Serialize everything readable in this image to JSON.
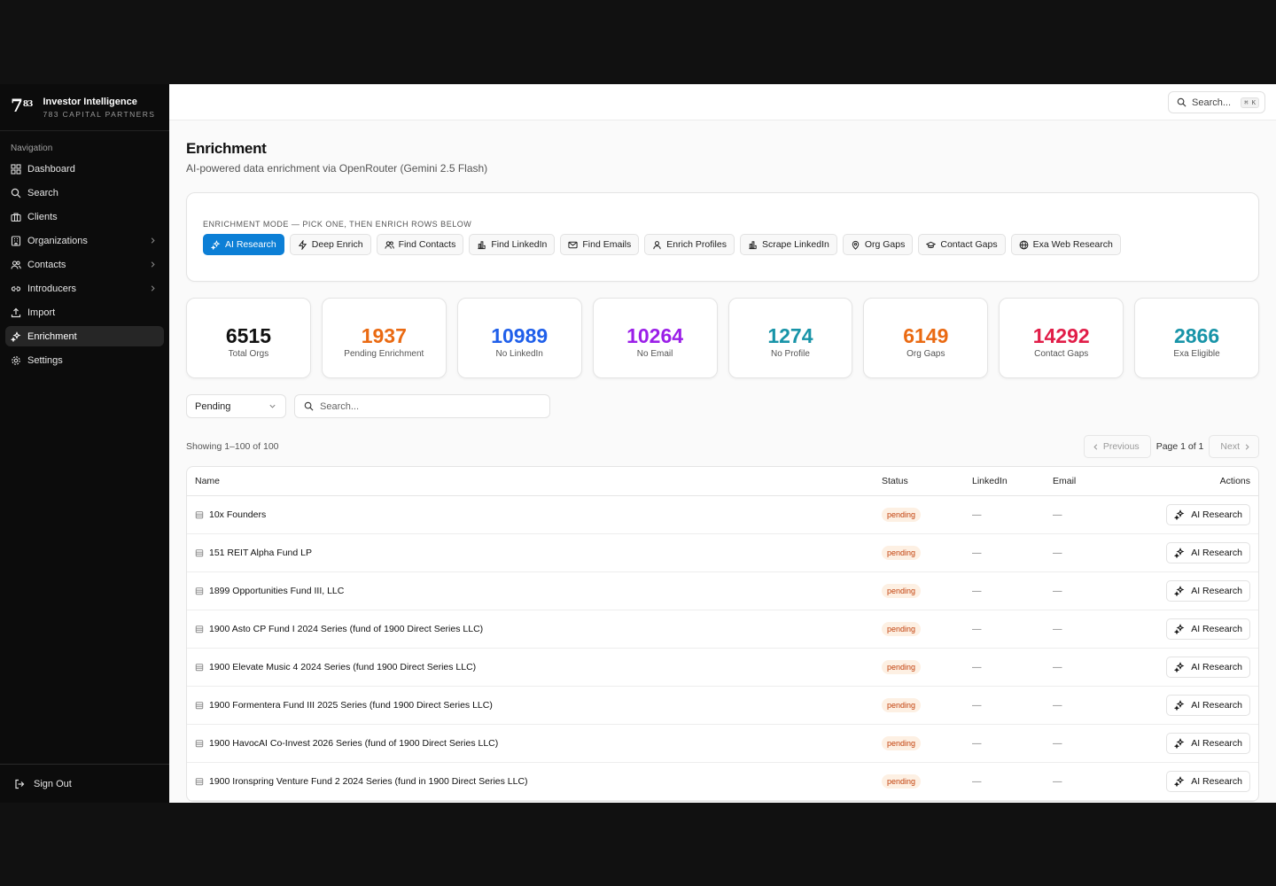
{
  "brand": {
    "logo": "7",
    "logo_sup": "83",
    "title": "Investor Intelligence",
    "subtitle": "783 CAPITAL PARTNERS"
  },
  "nav": {
    "label": "Navigation",
    "items": [
      {
        "label": "Dashboard",
        "icon": "dashboard-icon"
      },
      {
        "label": "Search",
        "icon": "search-icon"
      },
      {
        "label": "Clients",
        "icon": "briefcase-icon"
      },
      {
        "label": "Organizations",
        "icon": "building-icon",
        "expandable": true
      },
      {
        "label": "Contacts",
        "icon": "users-icon",
        "expandable": true
      },
      {
        "label": "Introducers",
        "icon": "link-icon",
        "expandable": true
      },
      {
        "label": "Import",
        "icon": "upload-icon"
      },
      {
        "label": "Enrichment",
        "icon": "sparkles-icon",
        "active": true
      },
      {
        "label": "Settings",
        "icon": "gear-icon"
      }
    ],
    "sign_out": "Sign Out"
  },
  "topbar": {
    "search_placeholder": "Search...",
    "shortcut": "⌘ K"
  },
  "page": {
    "title": "Enrichment",
    "subtitle": "AI-powered data enrichment via OpenRouter (Gemini 2.5 Flash)"
  },
  "mode": {
    "label": "Enrichment mode — pick one, then enrich rows below",
    "buttons": [
      {
        "label": "AI Research",
        "active": true
      },
      {
        "label": "Deep Enrich"
      },
      {
        "label": "Find Contacts"
      },
      {
        "label": "Find LinkedIn"
      },
      {
        "label": "Find Emails"
      },
      {
        "label": "Enrich Profiles"
      },
      {
        "label": "Scrape LinkedIn"
      },
      {
        "label": "Org Gaps"
      },
      {
        "label": "Contact Gaps"
      },
      {
        "label": "Exa Web Research"
      }
    ]
  },
  "stats": [
    {
      "value": "6515",
      "label": "Total Orgs",
      "color": "#111111"
    },
    {
      "value": "1937",
      "label": "Pending Enrichment",
      "color": "#ea6a12"
    },
    {
      "value": "10989",
      "label": "No LinkedIn",
      "color": "#1f5fea"
    },
    {
      "value": "10264",
      "label": "No Email",
      "color": "#9b1fe8"
    },
    {
      "value": "1274",
      "label": "No Profile",
      "color": "#1894a8"
    },
    {
      "value": "6149",
      "label": "Org Gaps",
      "color": "#ea6a12"
    },
    {
      "value": "14292",
      "label": "Contact Gaps",
      "color": "#e11d48"
    },
    {
      "value": "2866",
      "label": "Exa Eligible",
      "color": "#1894a8"
    }
  ],
  "filters": {
    "status_value": "Pending",
    "search_placeholder": "Search..."
  },
  "pagination": {
    "showing": "Showing 1–100 of 100",
    "previous": "Previous",
    "page": "Page 1 of 1",
    "next": "Next"
  },
  "table": {
    "columns": {
      "name": "Name",
      "status": "Status",
      "linkedin": "LinkedIn",
      "email": "Email",
      "actions": "Actions"
    },
    "rows": [
      {
        "name": "10x Founders",
        "status": "pending",
        "linkedin": "—",
        "email": "—",
        "action": "AI Research"
      },
      {
        "name": "151 REIT Alpha Fund LP",
        "status": "pending",
        "linkedin": "—",
        "email": "—",
        "action": "AI Research"
      },
      {
        "name": "1899 Opportunities Fund III, LLC",
        "status": "pending",
        "linkedin": "—",
        "email": "—",
        "action": "AI Research"
      },
      {
        "name": "1900 Asto CP Fund I 2024 Series (fund of 1900 Direct Series LLC)",
        "status": "pending",
        "linkedin": "—",
        "email": "—",
        "action": "AI Research"
      },
      {
        "name": "1900 Elevate Music 4 2024 Series (fund 1900 Direct Series LLC)",
        "status": "pending",
        "linkedin": "—",
        "email": "—",
        "action": "AI Research"
      },
      {
        "name": "1900 Formentera Fund III 2025 Series (fund 1900 Direct Series LLC)",
        "status": "pending",
        "linkedin": "—",
        "email": "—",
        "action": "AI Research"
      },
      {
        "name": "1900 HavocAI Co-Invest 2026 Series (fund of 1900 Direct Series LLC)",
        "status": "pending",
        "linkedin": "—",
        "email": "—",
        "action": "AI Research"
      },
      {
        "name": "1900 Ironspring Venture Fund 2 2024 Series (fund in 1900 Direct Series LLC)",
        "status": "pending",
        "linkedin": "—",
        "email": "—",
        "action": "AI Research"
      }
    ]
  }
}
